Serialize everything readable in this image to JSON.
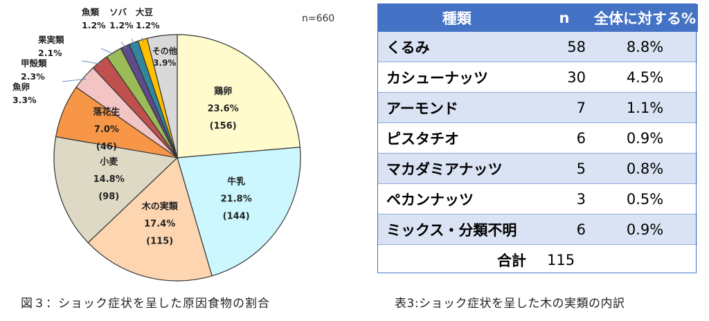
{
  "chart_data": [
    {
      "type": "pie",
      "n_label": "n=660",
      "slices": [
        {
          "name": "鶏卵",
          "percent": "23.6%",
          "count": "(156)",
          "value": 156,
          "color": "#fffbcc"
        },
        {
          "name": "牛乳",
          "percent": "21.8%",
          "count": "(144)",
          "value": 144,
          "color": "#ccf7ff"
        },
        {
          "name": "木の実類",
          "percent": "17.4%",
          "count": "(115)",
          "value": 115,
          "color": "#fdd5b1"
        },
        {
          "name": "小麦",
          "percent": "14.8%",
          "count": "(98)",
          "value": 98,
          "color": "#ddd9c4"
        },
        {
          "name": "落花生",
          "percent": "7.0%",
          "count": "(46)",
          "value": 46,
          "color": "#f79646"
        },
        {
          "name": "魚卵",
          "percent": "3.3%",
          "count": "",
          "value": 22,
          "color": "#f2c4c4"
        },
        {
          "name": "甲殻類",
          "percent": "2.3%",
          "count": "",
          "value": 15,
          "color": "#c0504d"
        },
        {
          "name": "果実類",
          "percent": "2.1%",
          "count": "",
          "value": 14,
          "color": "#9bbb59"
        },
        {
          "name": "魚類",
          "percent": "1.2%",
          "count": "",
          "value": 8,
          "color": "#5f4a8b"
        },
        {
          "name": "ソバ",
          "percent": "1.2%",
          "count": "",
          "value": 8,
          "color": "#31859c"
        },
        {
          "name": "大豆",
          "percent": "1.2%",
          "count": "",
          "value": 8,
          "color": "#ffc000"
        },
        {
          "name": "その他",
          "percent": "3.9%",
          "count": "",
          "value": 26,
          "color": "#d9d9d9"
        }
      ],
      "caption": "図３：ショック症状を呈した原因食物の割合"
    },
    {
      "type": "table",
      "headers": [
        "種類",
        "n",
        "全体に対する%"
      ],
      "rows": [
        {
          "name": "くるみ",
          "n": "58",
          "pct": "8.8%"
        },
        {
          "name": "カシューナッツ",
          "n": "30",
          "pct": "4.5%"
        },
        {
          "name": "アーモンド",
          "n": "7",
          "pct": "1.1%"
        },
        {
          "name": "ピスタチオ",
          "n": "6",
          "pct": "0.9%"
        },
        {
          "name": "マカダミアナッツ",
          "n": "5",
          "pct": "0.8%"
        },
        {
          "name": "ペカンナッツ",
          "n": "3",
          "pct": "0.5%"
        },
        {
          "name": "ミックス・分類不明",
          "n": "6",
          "pct": "0.9%"
        }
      ],
      "total_label": "合計",
      "total_value": "115",
      "caption": "表3:ショック症状を呈した木の実類の内訳"
    }
  ]
}
